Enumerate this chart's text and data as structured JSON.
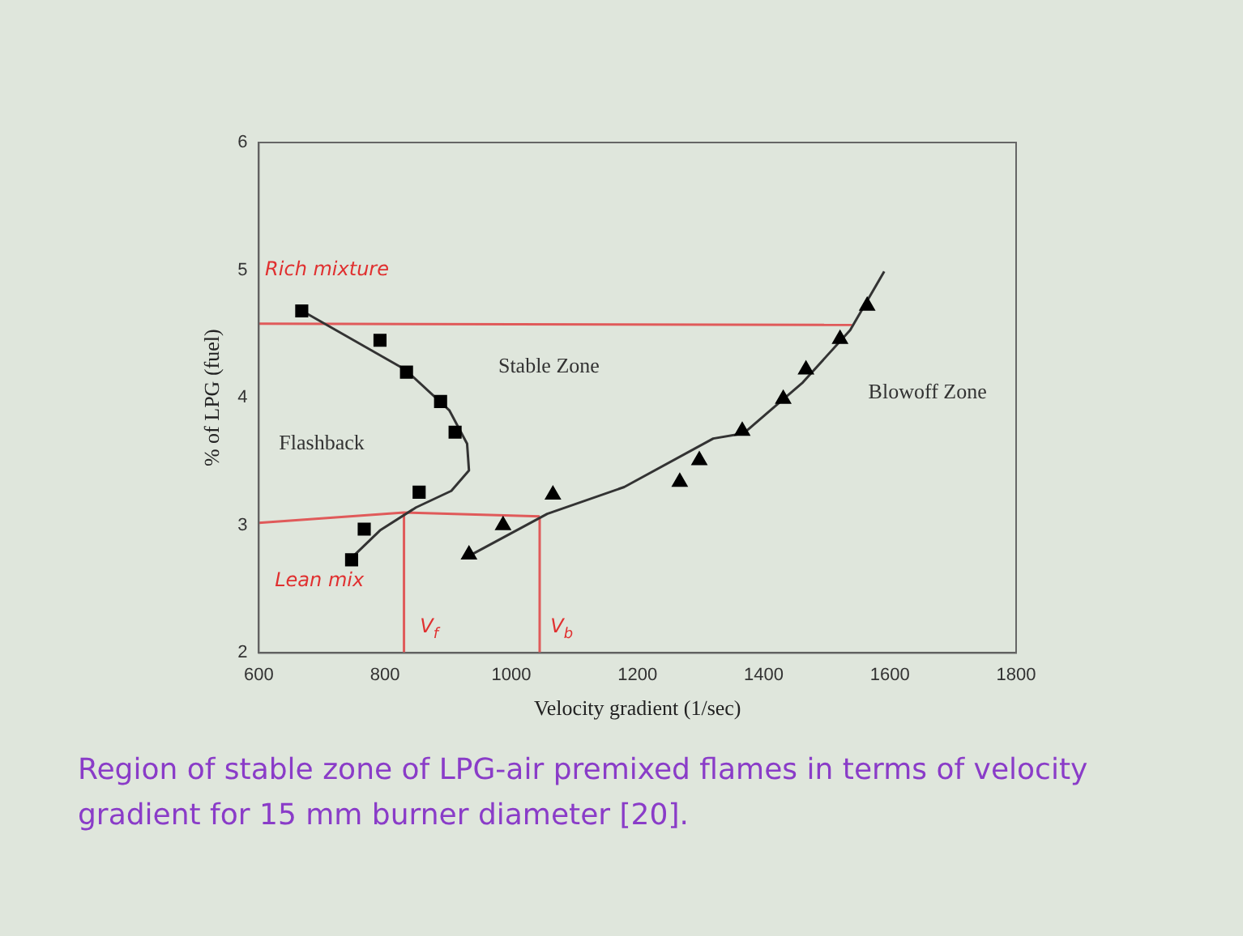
{
  "chart_data": {
    "type": "scatter",
    "xlabel": "Velocity gradient (1/sec)",
    "ylabel": "% of LPG (fuel)",
    "xlim": [
      600,
      1800
    ],
    "xticks": [
      600,
      800,
      1000,
      1200,
      1400,
      1600,
      1800
    ],
    "ylim": [
      2,
      6
    ],
    "yticks": [
      2,
      3,
      4,
      5,
      6
    ],
    "grid": false,
    "legend": false,
    "series": [
      {
        "type": "scatter",
        "marker": "square",
        "color": "#000000",
        "x": [
          668,
          792,
          834,
          888,
          911,
          854,
          767,
          747
        ],
        "values": [
          4.68,
          4.45,
          4.2,
          3.97,
          3.73,
          3.26,
          2.97,
          2.73
        ]
      },
      {
        "type": "scatter",
        "marker": "triangle",
        "color": "#000000",
        "x": [
          933,
          987,
          1066,
          1267,
          1298,
          1366,
          1431,
          1467,
          1521,
          1564
        ],
        "values": [
          2.77,
          3.0,
          3.24,
          3.34,
          3.51,
          3.74,
          3.99,
          4.22,
          4.46,
          4.72
        ]
      },
      {
        "type": "line",
        "marker": "none",
        "color": "#333333",
        "x": [
          676,
          832,
          902,
          930,
          933,
          905,
          849,
          792,
          750
        ],
        "values": [
          4.66,
          4.22,
          3.9,
          3.64,
          3.43,
          3.27,
          3.14,
          2.96,
          2.76
        ]
      },
      {
        "type": "line",
        "marker": "none",
        "color": "#333333",
        "x": [
          933,
          1057,
          1179,
          1320,
          1368,
          1462,
          1537,
          1591
        ],
        "values": [
          2.76,
          3.09,
          3.3,
          3.68,
          3.72,
          4.12,
          4.53,
          4.99
        ]
      },
      {
        "type": "line",
        "marker": "none",
        "color": "#e05a5a",
        "x": [
          600,
          1540
        ],
        "values": [
          4.58,
          4.57
        ]
      },
      {
        "type": "line",
        "marker": "none",
        "color": "#e05a5a",
        "x": [
          600,
          830,
          1045
        ],
        "values": [
          3.02,
          3.1,
          3.07
        ]
      },
      {
        "type": "line",
        "marker": "none",
        "color": "#e05a5a",
        "x": [
          830,
          830
        ],
        "values": [
          2,
          3.1
        ]
      },
      {
        "type": "line",
        "marker": "none",
        "color": "#e05a5a",
        "x": [
          1045,
          1045
        ],
        "values": [
          2,
          3.07
        ]
      }
    ],
    "annotations": [
      "Stable Zone",
      "Blowoff Zone",
      "Flashback",
      "Rich mixture",
      "Lean mix",
      "V$_{f}$",
      "V$_{b}$",
      "Region of stable zone of LPG-air premixed flames in terms of velocity gradient for 15 mm burner diameter [20]."
    ]
  }
}
